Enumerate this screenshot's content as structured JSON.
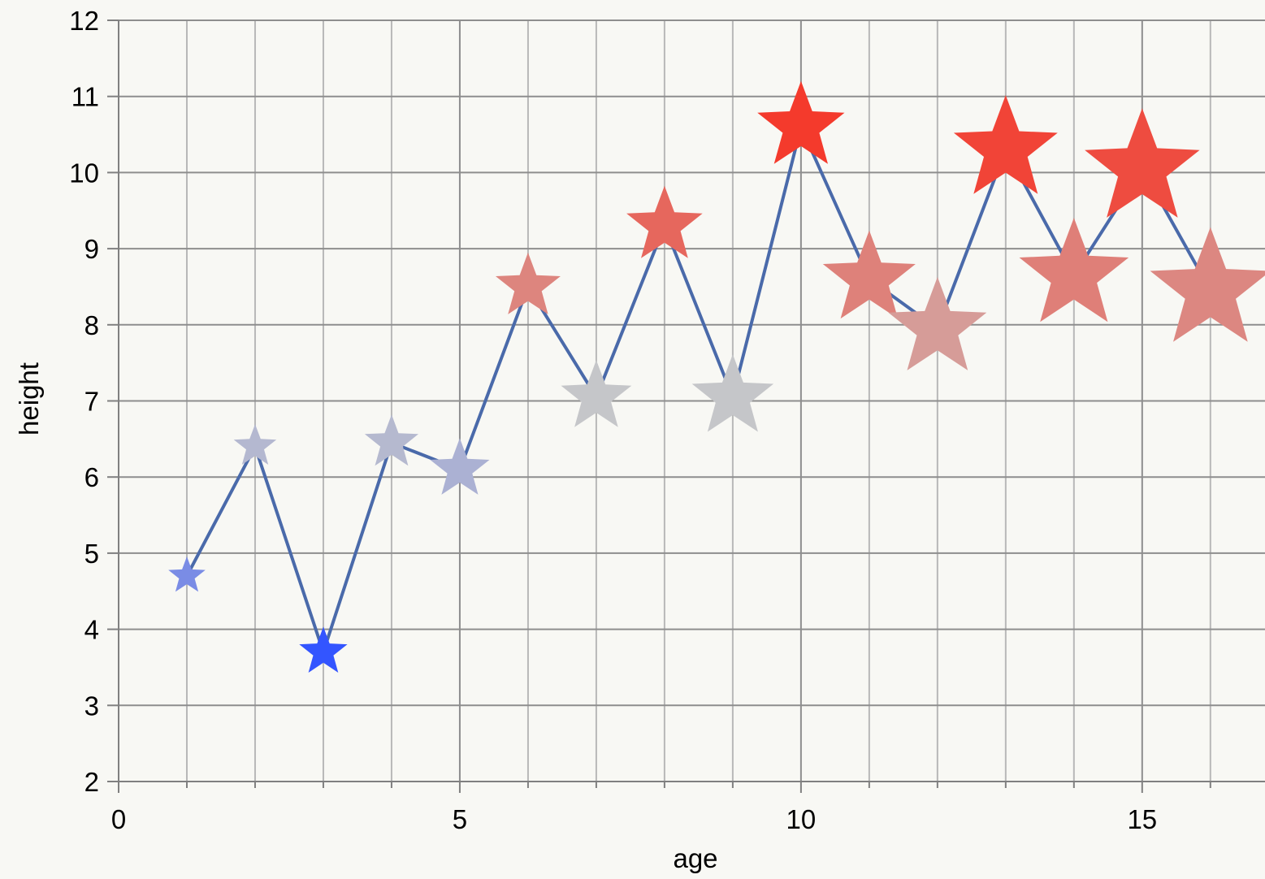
{
  "chart_data": {
    "type": "scatter",
    "xlabel": "age",
    "ylabel": "height",
    "xlim": [
      0,
      16.8
    ],
    "ylim": [
      2,
      12
    ],
    "x_ticks": [
      0,
      5,
      10,
      15
    ],
    "y_ticks": [
      2,
      3,
      4,
      5,
      6,
      7,
      8,
      9,
      10,
      11,
      12
    ],
    "grid": true,
    "marker": "star",
    "line_color": "#4a6aaa",
    "color_scale": {
      "low": "#3355ff",
      "mid": "#c8c8c8",
      "high": "#f43a2c"
    },
    "series": [
      {
        "x": [
          1,
          2,
          3,
          4,
          5,
          6,
          7,
          8,
          9,
          10,
          11,
          12,
          13,
          14,
          15,
          16
        ],
        "y": [
          4.7,
          6.4,
          3.7,
          6.45,
          6.1,
          8.5,
          7.05,
          9.3,
          7.05,
          10.6,
          8.6,
          7.95,
          10.3,
          8.65,
          10.05,
          8.45
        ]
      }
    ]
  }
}
